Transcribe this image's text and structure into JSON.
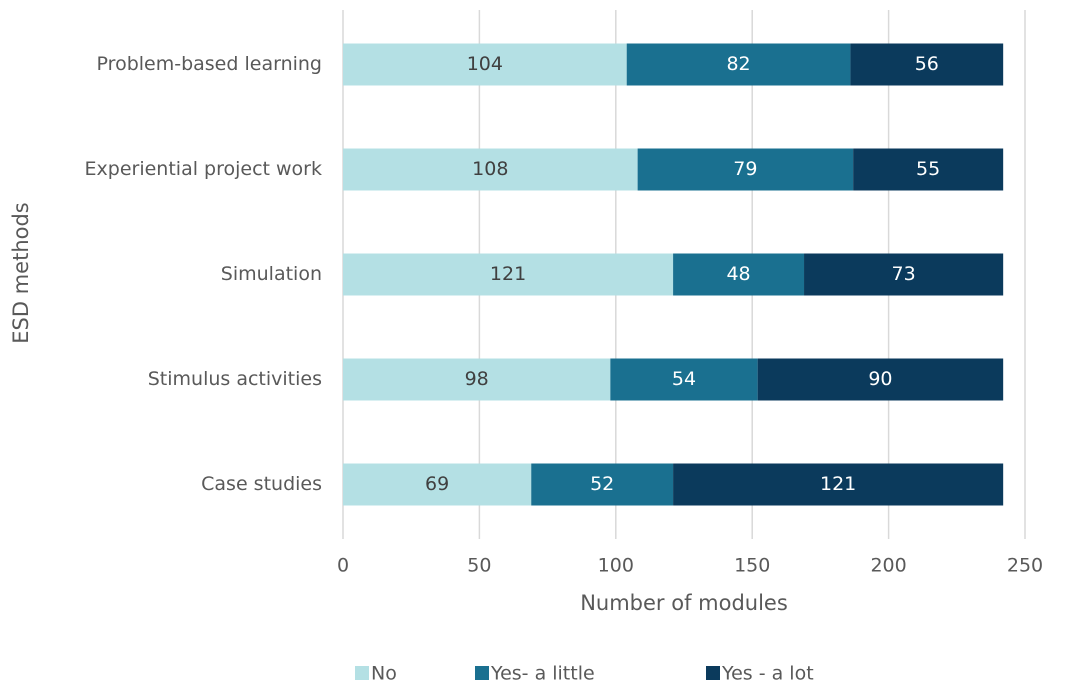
{
  "chart_data": {
    "type": "bar",
    "orientation": "horizontal",
    "stacked": true,
    "x_label": "Number of modules",
    "y_label": "ESD methods",
    "categories": [
      "Problem-based learning",
      "Experiential project work",
      "Simulation",
      "Stimulus activities",
      "Case studies"
    ],
    "series": [
      {
        "name": "No",
        "color": "#b4e0e4",
        "values": [
          104,
          108,
          121,
          98,
          69
        ]
      },
      {
        "name": "Yes- a little",
        "color": "#1a7090",
        "values": [
          82,
          79,
          48,
          54,
          52
        ]
      },
      {
        "name": "Yes - a lot",
        "color": "#0b3a5c",
        "values": [
          56,
          55,
          73,
          90,
          121
        ]
      }
    ],
    "xlim": [
      0,
      250
    ],
    "xticks": [
      0,
      50,
      100,
      150,
      200,
      250
    ],
    "grid": true,
    "legend": "bottom"
  }
}
